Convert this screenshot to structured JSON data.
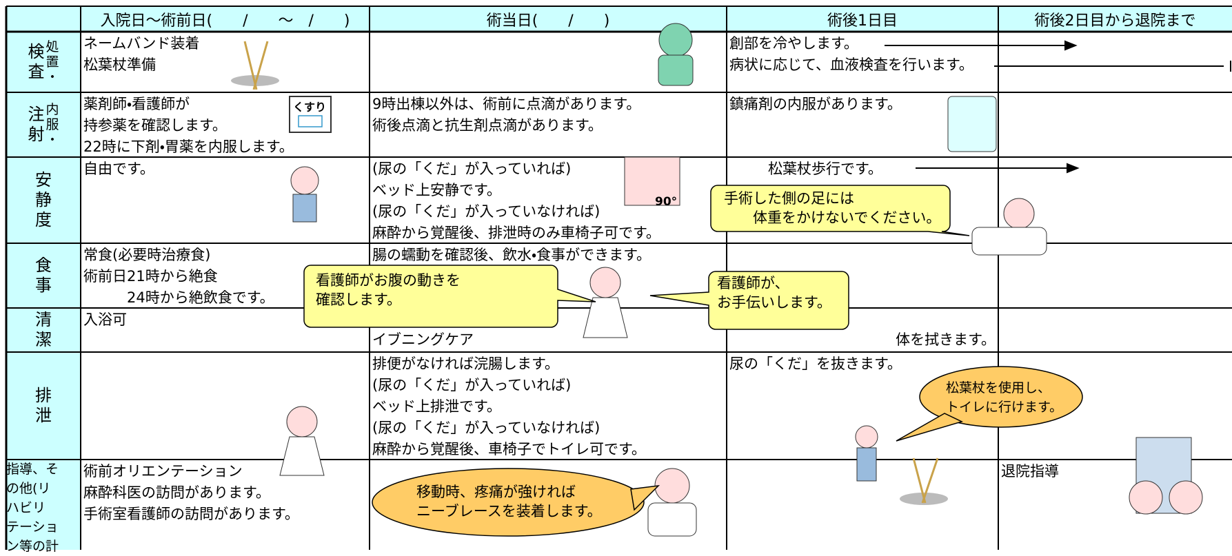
{
  "header": {
    "columns": [
      "入院日～術前日(　　/　　～　/　　)",
      "術当日(　　/　　)",
      "術後1日目",
      "術後2日目から退院まで"
    ]
  },
  "rows": [
    {
      "label": [
        "検査",
        "処置・"
      ],
      "cells": [
        [
          "ネームバンド装着",
          "松葉杖準備"
        ],
        [],
        [
          "創部を冷やします。",
          "病状に応じて、血液検査を行います。"
        ],
        []
      ]
    },
    {
      "label": [
        "注射",
        "内服・"
      ],
      "cells": [
        [
          "薬剤師・看護師が",
          "持参薬を確認します。",
          "22時に下剤・胃薬を内服します。"
        ],
        [
          "9時出棟以外は、術前に点滴があります。",
          "術後点滴と抗生剤点滴があります。"
        ],
        [
          "鎮痛剤の内服があります。"
        ],
        []
      ]
    },
    {
      "label": [
        "安静度"
      ],
      "cells": [
        [
          "自由です。"
        ],
        [
          "(尿の「くだ」が入っていれば)",
          "ベッド上安静です。",
          "(尿の「くだ」が入っていなければ)",
          "麻酔から覚醒後、排泄時のみ車椅子可です。"
        ],
        [
          "松葉杖歩行です。"
        ],
        []
      ]
    },
    {
      "label": [
        "食事"
      ],
      "cells": [
        [
          "常食(必要時治療食)",
          "術前日21時から絶食",
          "　　　24時から絶飲食です。"
        ],
        [
          "腸の蠕動を確認後、飲水・食事ができます。"
        ],
        [],
        []
      ]
    },
    {
      "label": [
        "清潔"
      ],
      "cells": [
        [
          "入浴可"
        ],
        [
          "イブニングケア"
        ],
        [
          "体を拭きます。"
        ],
        []
      ]
    },
    {
      "label": [
        "排泄"
      ],
      "cells": [
        [],
        [
          "排便がなければ浣腸します。",
          "(尿の「くだ」が入っていれば)",
          "ベッド上排泄です。",
          "(尿の「くだ」が入っていなければ)",
          "麻酔から覚醒後、車椅子でトイレ可です。"
        ],
        [
          "尿の「くだ」を抜きます。"
        ],
        []
      ]
    },
    {
      "label_lines": [
        "指導、そ",
        "の他(リ",
        "ハビリ",
        "テーショ",
        "ン等の計"
      ],
      "cells": [
        [
          "術前オリエンテーション",
          "麻酔科医の訪問があります。",
          "手術室看護師の訪問があります。"
        ],
        [],
        [],
        [
          "退院指導"
        ]
      ]
    }
  ],
  "callouts": [
    "手術した側の足には\n　　体重をかけないでください。",
    "看護師がお腹の動きを\n確認します。",
    "看護師が、\nお手伝いします。",
    "松葉杖を使用し、\nトイレに行けます。",
    "移動時、疼痛が強ければ\nニーブレースを装着します。"
  ],
  "illustration_labels": [
    "くすり",
    "90°"
  ]
}
